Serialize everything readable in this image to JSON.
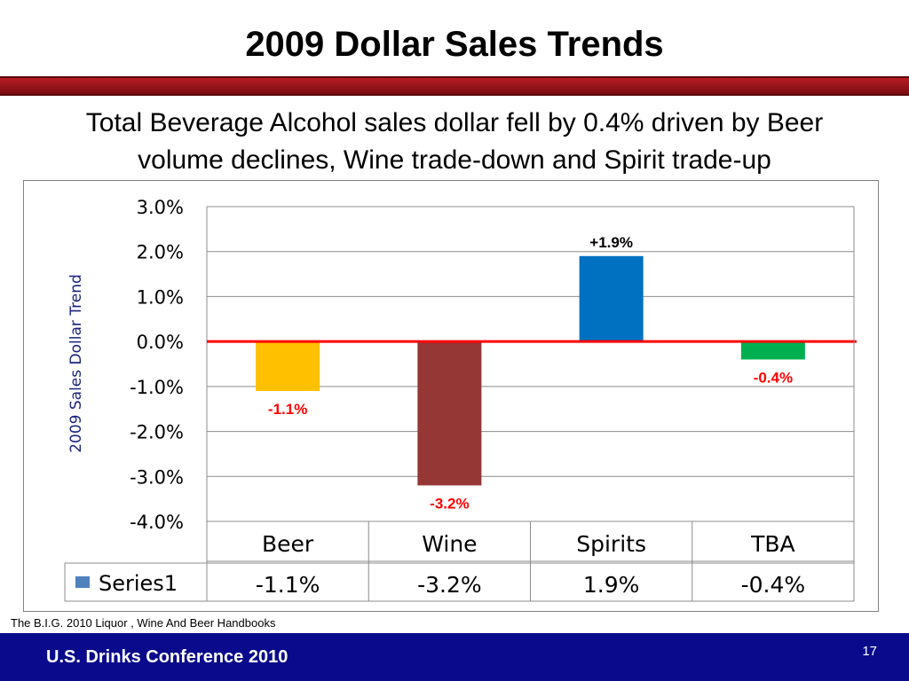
{
  "slide": {
    "title": "2009 Dollar Sales Trends",
    "subtitle_line1": "Total Beverage Alcohol sales dollar fell by 0.4% driven by Beer",
    "subtitle_line2": "volume declines, Wine trade-down and Spirit trade-up",
    "source": "The B.I.G. 2010 Liquor , Wine And Beer Handbooks",
    "footer": "U.S. Drinks Conference 2010",
    "page_number": "17"
  },
  "chart_data": {
    "type": "bar",
    "ylabel": "2009 Sales Dollar Trend",
    "ylim": [
      -4.0,
      3.0
    ],
    "yticks": [
      "3.0%",
      "2.0%",
      "1.0%",
      "0.0%",
      "-1.0%",
      "-2.0%",
      "-3.0%",
      "-4.0%"
    ],
    "categories": [
      "Beer",
      "Wine",
      "Spirits",
      "TBA"
    ],
    "series": [
      {
        "name": "Series1",
        "values": [
          -1.1,
          -3.2,
          1.9,
          -0.4
        ],
        "table_labels": [
          "-1.1%",
          "-3.2%",
          "1.9%",
          "-0.4%"
        ]
      }
    ],
    "data_labels": [
      "-1.1%",
      "-3.2%",
      "+1.9%",
      "-0.4%"
    ],
    "bar_colors": [
      "#ffc000",
      "#953735",
      "#0070c0",
      "#00b050"
    ],
    "data_label_colors": [
      "#ff0000",
      "#ff0000",
      "#000000",
      "#ff0000"
    ],
    "zero_line_color": "#ff0000",
    "legend_color": "#4f81bd",
    "grid": true,
    "legend": "data-table"
  }
}
